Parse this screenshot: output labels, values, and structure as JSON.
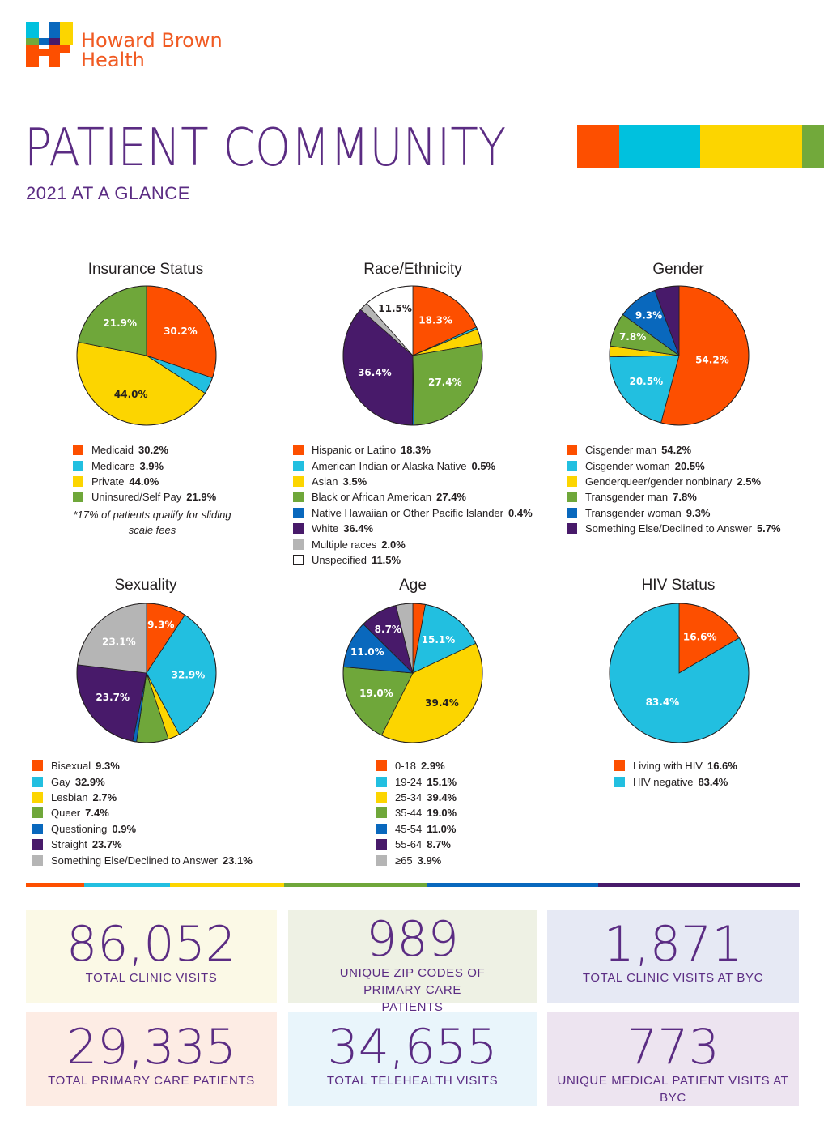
{
  "header": {
    "logo_text_line1": "Howard Brown",
    "logo_text_line2": "Health",
    "title": "PATIENT COMMUNITY",
    "subtitle": "2021 AT A GLANCE",
    "title_bar_colors": [
      "#fd4f00",
      "#00c1de",
      "#fcd500",
      "#72a93b"
    ]
  },
  "palette": {
    "orange": "#fd4f00",
    "cyan": "#22bfe0",
    "yellow": "#fcd500",
    "green": "#6fa73a",
    "blue": "#0968bd",
    "purple": "#481a6a",
    "gray": "#b5b5b5",
    "white": "#ffffff",
    "accent_purple": "#5b2c83"
  },
  "chart_data": [
    {
      "type": "pie",
      "title": "Insurance Status",
      "slices": [
        {
          "label": "Medicaid",
          "value": 30.2,
          "value_text": "30.2%",
          "color": "#fd4f00",
          "show_label": true
        },
        {
          "label": "Medicare",
          "value": 3.9,
          "value_text": "3.9%",
          "color": "#22bfe0",
          "show_label": false
        },
        {
          "label": "Private",
          "value": 44.0,
          "value_text": "44.0%",
          "color": "#fcd500",
          "show_label": true,
          "dark": true
        },
        {
          "label": "Uninsured/Self Pay",
          "value": 21.9,
          "value_text": "21.9%",
          "color": "#6fa73a",
          "show_label": true
        }
      ],
      "note": "*17% of patients qualify for sliding scale fees"
    },
    {
      "type": "pie",
      "title": "Race/Ethnicity",
      "slices": [
        {
          "label": "Hispanic or Latino",
          "value": 18.3,
          "value_text": "18.3%",
          "color": "#fd4f00",
          "show_label": true
        },
        {
          "label": "American Indian or Alaska Native",
          "value": 0.5,
          "value_text": "0.5%",
          "color": "#22bfe0",
          "show_label": false
        },
        {
          "label": "Asian",
          "value": 3.5,
          "value_text": "3.5%",
          "color": "#fcd500",
          "show_label": false
        },
        {
          "label": "Black or African American",
          "value": 27.4,
          "value_text": "27.4%",
          "color": "#6fa73a",
          "show_label": true
        },
        {
          "label": "Native Hawaiian or Other Pacific Islander",
          "value": 0.4,
          "value_text": "0.4%",
          "color": "#0968bd",
          "show_label": false
        },
        {
          "label": "White",
          "value": 36.4,
          "value_text": "36.4%",
          "color": "#481a6a",
          "show_label": true
        },
        {
          "label": "Multiple races",
          "value": 2.0,
          "value_text": "2.0%",
          "color": "#b5b5b5",
          "show_label": false
        },
        {
          "label": "Unspecified",
          "value": 11.5,
          "value_text": "11.5%",
          "color": "#ffffff",
          "show_label": true,
          "dark": true
        }
      ]
    },
    {
      "type": "pie",
      "title": "Gender",
      "slices": [
        {
          "label": "Cisgender man",
          "value": 54.2,
          "value_text": "54.2%",
          "color": "#fd4f00",
          "show_label": true
        },
        {
          "label": "Cisgender woman",
          "value": 20.5,
          "value_text": "20.5%",
          "color": "#22bfe0",
          "show_label": true
        },
        {
          "label": "Genderqueer/gender nonbinary",
          "value": 2.5,
          "value_text": "2.5%",
          "color": "#fcd500",
          "show_label": false
        },
        {
          "label": "Transgender man",
          "value": 7.8,
          "value_text": "7.8%",
          "color": "#6fa73a",
          "show_label": true
        },
        {
          "label": "Transgender woman",
          "value": 9.3,
          "value_text": "9.3%",
          "color": "#0968bd",
          "show_label": true
        },
        {
          "label": "Something Else/Declined to Answer",
          "value": 5.7,
          "value_text": "5.7%",
          "color": "#481a6a",
          "show_label": false
        }
      ]
    },
    {
      "type": "pie",
      "title": "Sexuality",
      "slices": [
        {
          "label": "Bisexual",
          "value": 9.3,
          "value_text": "9.3%",
          "color": "#fd4f00",
          "show_label": true
        },
        {
          "label": "Gay",
          "value": 32.9,
          "value_text": "32.9%",
          "color": "#22bfe0",
          "show_label": true
        },
        {
          "label": "Lesbian",
          "value": 2.7,
          "value_text": "2.7%",
          "color": "#fcd500",
          "show_label": false
        },
        {
          "label": "Queer",
          "value": 7.4,
          "value_text": "7.4%",
          "color": "#6fa73a",
          "show_label": false
        },
        {
          "label": "Questioning",
          "value": 0.9,
          "value_text": "0.9%",
          "color": "#0968bd",
          "show_label": false
        },
        {
          "label": "Straight",
          "value": 23.7,
          "value_text": "23.7%",
          "color": "#481a6a",
          "show_label": true
        },
        {
          "label": "Something Else/Declined to Answer",
          "value": 23.1,
          "value_text": "23.1%",
          "color": "#b5b5b5",
          "show_label": true
        }
      ]
    },
    {
      "type": "pie",
      "title": "Age",
      "slices": [
        {
          "label": "0-18",
          "value": 2.9,
          "value_text": "2.9%",
          "color": "#fd4f00",
          "show_label": false
        },
        {
          "label": "19-24",
          "value": 15.1,
          "value_text": "15.1%",
          "color": "#22bfe0",
          "show_label": true
        },
        {
          "label": "25-34",
          "value": 39.4,
          "value_text": "39.4%",
          "color": "#fcd500",
          "show_label": true,
          "dark": true
        },
        {
          "label": "35-44",
          "value": 19.0,
          "value_text": "19.0%",
          "color": "#6fa73a",
          "show_label": true
        },
        {
          "label": "45-54",
          "value": 11.0,
          "value_text": "11.0%",
          "color": "#0968bd",
          "show_label": true
        },
        {
          "label": "55-64",
          "value": 8.7,
          "value_text": "8.7%",
          "color": "#481a6a",
          "show_label": true
        },
        {
          "label": "≥65",
          "value": 3.9,
          "value_text": "3.9%",
          "color": "#b5b5b5",
          "show_label": false
        }
      ]
    },
    {
      "type": "pie",
      "title": "HIV Status",
      "slices": [
        {
          "label": "Living with HIV",
          "value": 16.6,
          "value_text": "16.6%",
          "color": "#fd4f00",
          "show_label": true
        },
        {
          "label": "HIV negative",
          "value": 83.4,
          "value_text": "83.4%",
          "color": "#22bfe0",
          "show_label": true
        }
      ]
    }
  ],
  "divider_colors": [
    "#fd4f00",
    "#22bfe0",
    "#fcd500",
    "#6fa73a",
    "#0968bd",
    "#481a6a"
  ],
  "stats": [
    {
      "number": "86,052",
      "label": "TOTAL CLINIC VISITS",
      "bg": "#fbf9e6"
    },
    {
      "number": "989",
      "label": "UNIQUE ZIP CODES OF PRIMARY CARE PATIENTS",
      "bg": "#eef1e4"
    },
    {
      "number": "1,871",
      "label": "TOTAL CLINIC VISITS AT BYC",
      "bg": "#e6e9f4"
    },
    {
      "number": "29,335",
      "label": "TOTAL PRIMARY CARE PATIENTS",
      "bg": "#fdece4"
    },
    {
      "number": "34,655",
      "label": "TOTAL TELEHEALTH VISITS",
      "bg": "#e9f5fb"
    },
    {
      "number": "773",
      "label": "UNIQUE MEDICAL PATIENT VISITS AT BYC",
      "bg": "#ede4f0"
    }
  ]
}
